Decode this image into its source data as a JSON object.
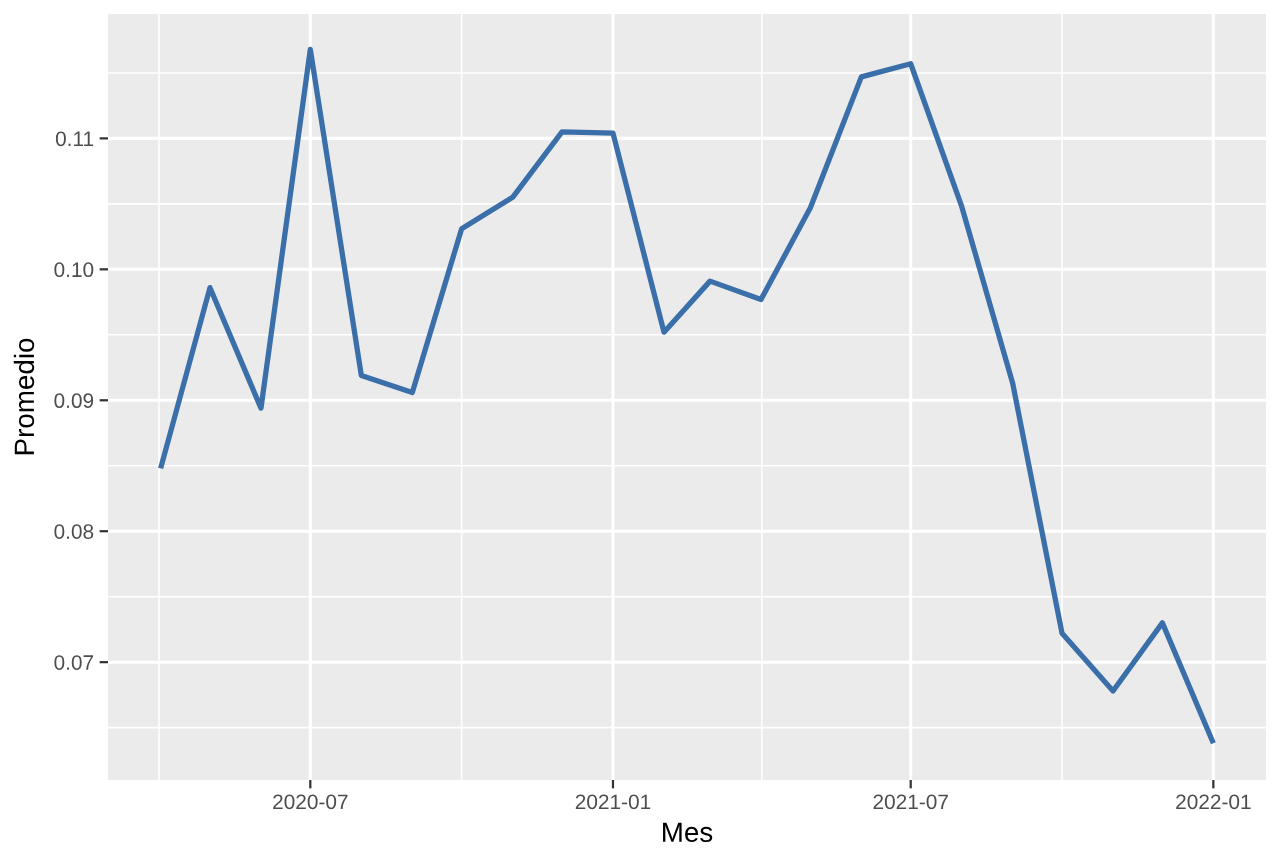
{
  "chart_data": {
    "type": "line",
    "xlabel": "Mes",
    "ylabel": "Promedio",
    "x": [
      "2020-04",
      "2020-05",
      "2020-06",
      "2020-07",
      "2020-08",
      "2020-09",
      "2020-10",
      "2020-11",
      "2020-12",
      "2021-01",
      "2021-02",
      "2021-03",
      "2021-04",
      "2021-05",
      "2021-06",
      "2021-07",
      "2021-08",
      "2021-09",
      "2021-10",
      "2021-11",
      "2021-12",
      "2022-01"
    ],
    "series": [
      {
        "color": "#3a6faa",
        "values": [
          0.0848,
          0.0986,
          0.0894,
          0.1168,
          0.0919,
          0.0906,
          0.1031,
          0.1055,
          0.1105,
          0.1104,
          0.0952,
          0.0991,
          0.0977,
          0.1047,
          0.1147,
          0.1157,
          0.1048,
          0.0913,
          0.0722,
          0.0678,
          0.073,
          0.0638
        ]
      }
    ],
    "xlim": [
      "2020-02-29",
      "2022-02-02"
    ],
    "xticks": [
      {
        "value": "2020-07",
        "label": "2020-07"
      },
      {
        "value": "2021-01",
        "label": "2021-01"
      },
      {
        "value": "2021-07",
        "label": "2021-07"
      },
      {
        "value": "2022-01",
        "label": "2022-01"
      }
    ],
    "ylim": [
      0.061,
      0.1195
    ],
    "yticks": [
      0.07,
      0.08,
      0.09,
      {
        "value": 0.1,
        "label": "0.10"
      },
      0.11
    ],
    "grid": true,
    "marker": "none",
    "line_style": "solid"
  }
}
